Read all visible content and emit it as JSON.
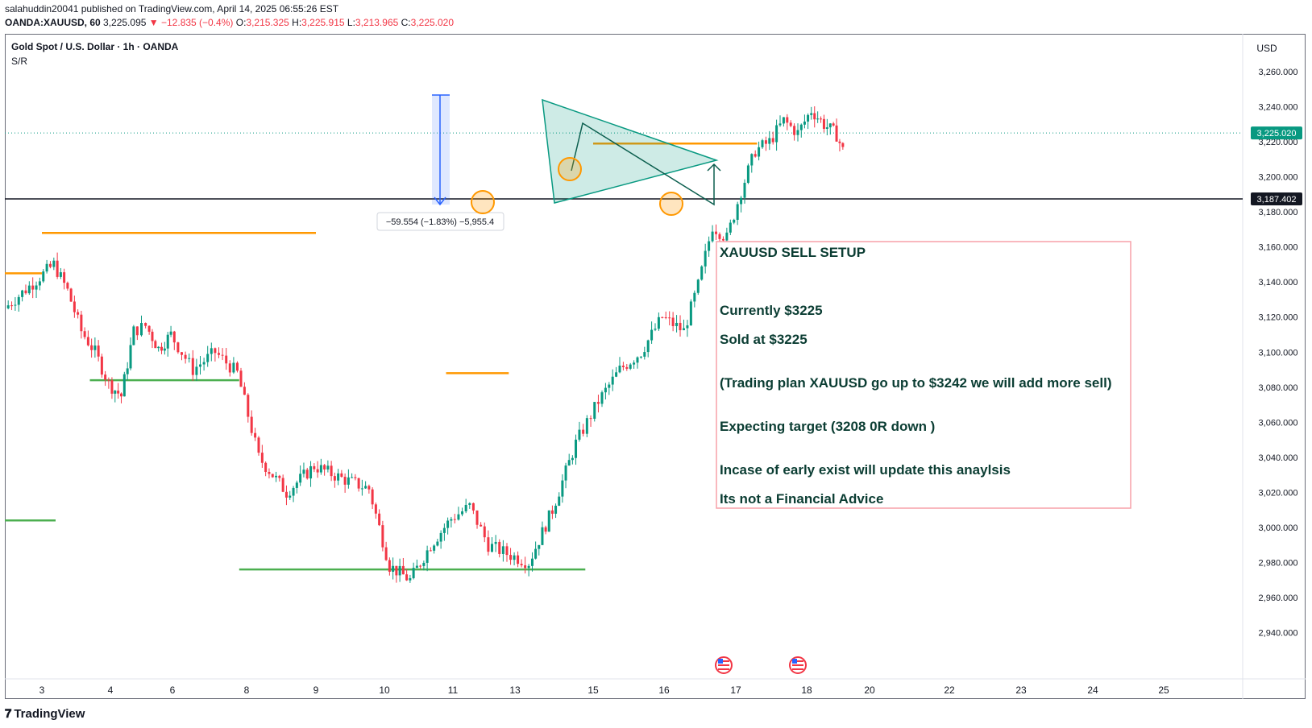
{
  "header": {
    "publish_line": "salahuddin20041 published on TradingView.com, April 14, 2025 06:55:26 EST",
    "symbol": "OANDA:XAUUSD, 60",
    "last": "3,225.095",
    "change": "−12.835 (−0.4%)",
    "o_label": "O:",
    "o": "3,215.325",
    "h_label": "H:",
    "h": "3,225.915",
    "l_label": "L:",
    "l": "3,213.965",
    "c_label": "C:",
    "c": "3,225.020"
  },
  "chart_title": "Gold Spot / U.S. Dollar · 1h · OANDA",
  "indicator_label": "S/R",
  "currency_label": "USD",
  "branding": "TradingView",
  "colors": {
    "up": "#089981",
    "down": "#f23645",
    "orange": "#ff9800",
    "green_line": "#4caf50",
    "triangle": "#089981",
    "note_border": "#f7a1a8",
    "measure": "#2962ff"
  },
  "chart_data": {
    "type": "candlestick",
    "y_axis": {
      "min": 2930,
      "max": 3270,
      "ticks": [
        "3,260.000",
        "3,240.000",
        "3,220.000",
        "3,200.000",
        "3,180.000",
        "3,160.000",
        "3,140.000",
        "3,120.000",
        "3,100.000",
        "3,080.000",
        "3,060.000",
        "3,040.000",
        "3,020.000",
        "3,000.000",
        "2,980.000",
        "2,960.000",
        "2,940.000"
      ]
    },
    "x_axis": {
      "ticks": [
        "3",
        "4",
        "6",
        "8",
        "9",
        "10",
        "11",
        "13",
        "15",
        "16",
        "17",
        "18",
        "20",
        "22",
        "23",
        "24",
        "25"
      ]
    },
    "price_labels": {
      "current": "3,225.020",
      "hline": "3,187.402"
    },
    "measure_label": "−59.554 (−1.83%) −5,955.4",
    "series_points": [
      [
        3.0,
        3125
      ],
      [
        3.2,
        3150
      ],
      [
        3.4,
        3135
      ],
      [
        3.6,
        3112
      ],
      [
        3.8,
        3100
      ],
      [
        4.0,
        3082
      ],
      [
        4.2,
        3075
      ],
      [
        4.4,
        3112
      ],
      [
        4.6,
        3115
      ],
      [
        4.8,
        3102
      ],
      [
        5.0,
        3110
      ],
      [
        5.3,
        3090
      ],
      [
        5.6,
        3100
      ],
      [
        5.9,
        3088
      ],
      [
        6.2,
        3040
      ],
      [
        6.6,
        3020
      ],
      [
        7.0,
        3035
      ],
      [
        7.4,
        3028
      ],
      [
        7.8,
        3022
      ],
      [
        8.1,
        2978
      ],
      [
        8.4,
        2970
      ],
      [
        8.7,
        2990
      ],
      [
        9.0,
        3005
      ],
      [
        9.3,
        3012
      ],
      [
        9.6,
        2990
      ],
      [
        9.9,
        2985
      ],
      [
        10.2,
        2980
      ],
      [
        10.5,
        3010
      ],
      [
        10.8,
        3048
      ],
      [
        11.1,
        3072
      ],
      [
        11.4,
        3090
      ],
      [
        11.7,
        3100
      ],
      [
        12.0,
        3120
      ],
      [
        12.3,
        3112
      ],
      [
        12.5,
        3138
      ],
      [
        12.7,
        3172
      ],
      [
        12.9,
        3165
      ],
      [
        13.1,
        3192
      ],
      [
        13.3,
        3215
      ],
      [
        13.5,
        3220
      ],
      [
        13.7,
        3232
      ],
      [
        13.9,
        3225
      ],
      [
        14.1,
        3238
      ],
      [
        14.3,
        3230
      ],
      [
        14.5,
        3224
      ],
      [
        14.6,
        3215
      ]
    ],
    "sr_lines": [
      {
        "color": "orange",
        "price": 3168,
        "from": 3.0,
        "to": 7.0
      },
      {
        "color": "orange",
        "price": 3145,
        "from": 2.5,
        "to": 3.0
      },
      {
        "color": "green",
        "price": 3084,
        "from": 3.7,
        "to": 5.9
      },
      {
        "color": "green",
        "price": 3004,
        "from": 2.5,
        "to": 3.2
      },
      {
        "color": "green",
        "price": 2976,
        "from": 5.9,
        "to": 10.9
      },
      {
        "color": "orange",
        "price": 3088,
        "from": 8.9,
        "to": 9.9
      },
      {
        "color": "orange",
        "price": 3219,
        "from": 11.0,
        "to": 13.3
      }
    ],
    "note": {
      "title": "XAUUSD SELL SETUP",
      "lines": [
        "Currently $3225",
        "Sold at $3225",
        "(Trading plan XAUUSD go up to $3242 we will add more sell)",
        "Expecting target (3208 0R down )",
        "Incase of early exist will update this anaylsis",
        "Its not a Financial Advice"
      ]
    }
  }
}
